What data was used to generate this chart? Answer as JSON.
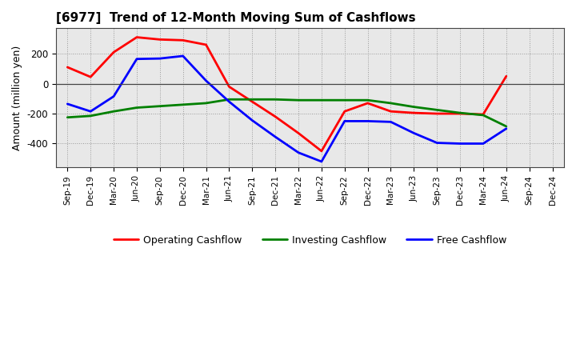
{
  "title": "[6977]  Trend of 12-Month Moving Sum of Cashflows",
  "ylabel": "Amount (million yen)",
  "ylim": [
    -560,
    370
  ],
  "yticks": [
    -400,
    -200,
    0,
    200
  ],
  "x_labels": [
    "Sep-19",
    "Dec-19",
    "Mar-20",
    "Jun-20",
    "Sep-20",
    "Dec-20",
    "Mar-21",
    "Jun-21",
    "Sep-21",
    "Dec-21",
    "Mar-22",
    "Jun-22",
    "Sep-22",
    "Dec-22",
    "Mar-23",
    "Jun-23",
    "Sep-23",
    "Dec-23",
    "Mar-24",
    "Jun-24",
    "Sep-24",
    "Dec-24"
  ],
  "operating_cashflow": [
    110,
    45,
    210,
    310,
    295,
    290,
    260,
    -20,
    -120,
    -220,
    -330,
    -450,
    -185,
    -130,
    -185,
    -195,
    -200,
    -200,
    -205,
    50,
    null,
    null
  ],
  "investing_cashflow": [
    -225,
    -215,
    -185,
    -160,
    -150,
    -140,
    -130,
    -105,
    -105,
    -105,
    -110,
    -110,
    -110,
    -110,
    -130,
    -155,
    -175,
    -195,
    -210,
    -285,
    null,
    null
  ],
  "free_cashflow": [
    -135,
    -185,
    -85,
    165,
    168,
    185,
    20,
    -120,
    -245,
    -355,
    -460,
    -520,
    -250,
    -250,
    -255,
    -330,
    -395,
    -400,
    -400,
    -300,
    null,
    null
  ],
  "operating_color": "#ff0000",
  "investing_color": "#008000",
  "free_color": "#0000ff",
  "plot_bg_color": "#e8e8e8",
  "fig_bg_color": "#ffffff",
  "grid_color": "#999999"
}
